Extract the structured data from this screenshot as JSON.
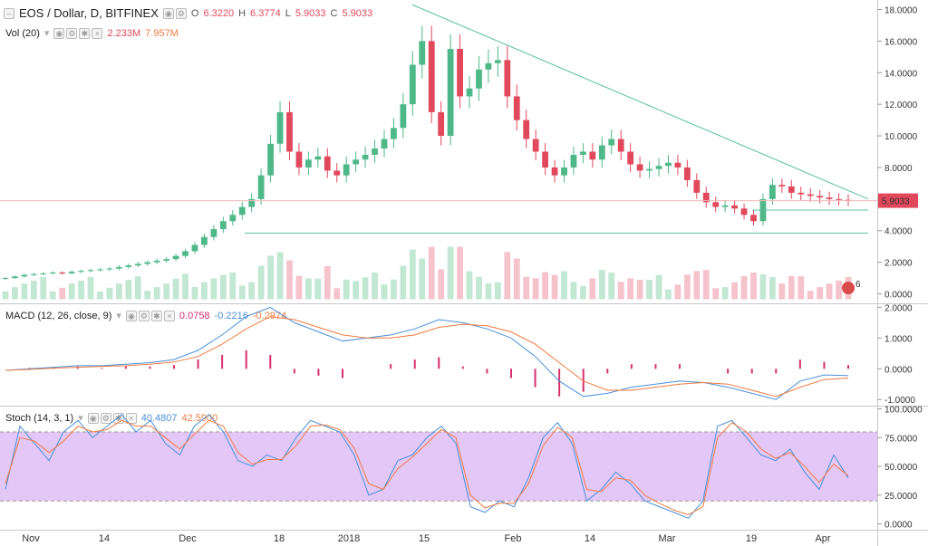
{
  "header": {
    "symbol": "EOS / Dollar, D, BITFINEX",
    "o_label": "O",
    "o_value": "6.3220",
    "h_label": "H",
    "h_value": "6.3774",
    "l_label": "L",
    "l_value": "5.9033",
    "c_label": "C",
    "c_value": "5.9033"
  },
  "volume": {
    "label": "Vol (20)",
    "value": "2.233M",
    "ma_value": "7.957M"
  },
  "macd": {
    "label": "MACD (12, 26, close, 9)",
    "hist": "0.0758",
    "macd": "-0.2216",
    "signal": "-0.2974"
  },
  "stoch": {
    "label": "Stoch (14, 3, 1)",
    "k": "40.4807",
    "d": "42.5900"
  },
  "price_badge": "5.9033",
  "event_badge": "6",
  "colors": {
    "up": "#4fb888",
    "down": "#e2485c",
    "trend": "#5bbfa3",
    "macd_line": "#4a90d9",
    "signal_line": "#f07b3f",
    "stoch_band": "#e3c8f7"
  },
  "chart_data": [
    {
      "type": "candlestick",
      "title": "EOS / Dollar, D, BITFINEX",
      "x_ticks": [
        "Nov",
        "14",
        "Dec",
        "18",
        "2018",
        "15",
        "Feb",
        "14",
        "Mar",
        "19",
        "Apr"
      ],
      "y_ticks": [
        "0.0000",
        "2.0000",
        "4.0000",
        "6.0000",
        "8.0000",
        "10.0000",
        "12.0000",
        "14.0000",
        "16.0000",
        "18.0000"
      ],
      "ylim": [
        -0.6,
        18.6
      ],
      "series": [
        {
          "name": "close",
          "values": [
            1.0,
            1.1,
            1.2,
            1.25,
            1.3,
            1.35,
            1.3,
            1.4,
            1.45,
            1.5,
            1.55,
            1.6,
            1.7,
            1.8,
            1.9,
            2.0,
            2.1,
            2.2,
            2.4,
            2.7,
            3.1,
            3.6,
            4.1,
            4.6,
            5.0,
            5.5,
            6.0,
            7.5,
            9.5,
            11.5,
            9.0,
            8.0,
            8.5,
            8.7,
            7.8,
            7.5,
            8.2,
            8.5,
            8.8,
            9.2,
            9.8,
            10.5,
            12.0,
            14.5,
            16.0,
            11.5,
            10.0,
            15.5,
            12.5,
            13.0,
            14.2,
            14.6,
            14.8,
            12.5,
            11.0,
            9.8,
            9.0,
            8.0,
            7.5,
            8.0,
            8.8,
            9.0,
            8.5,
            9.4,
            9.8,
            9.0,
            8.2,
            7.8,
            7.9,
            8.1,
            8.3,
            8.0,
            7.2,
            6.4,
            5.8,
            5.5,
            5.6,
            5.4,
            5.0,
            4.6,
            6.0,
            6.9,
            6.8,
            6.4,
            6.3,
            6.2,
            6.1,
            6.0,
            5.95,
            5.9
          ],
          "note": "approximate daily closes read from chart"
        },
        {
          "name": "trendline",
          "values": [
            18.3,
            6.0
          ]
        },
        {
          "name": "support",
          "values": [
            3.85
          ]
        },
        {
          "name": "support_2",
          "values": [
            5.3
          ]
        }
      ]
    },
    {
      "type": "bar",
      "title": "Vol (20)",
      "y_ticks": [],
      "series": [
        {
          "name": "volume",
          "values": [
            2.233
          ]
        }
      ]
    },
    {
      "type": "line",
      "title": "MACD (12, 26, close, 9)",
      "y_ticks": [
        "-1.0000",
        "0.0000",
        "1.0000",
        "2.0000"
      ],
      "ylim": [
        -1.2,
        2.1
      ],
      "series": [
        {
          "name": "MACD",
          "values": [
            -0.05,
            0.0,
            0.05,
            0.1,
            0.1,
            0.15,
            0.2,
            0.3,
            0.6,
            1.1,
            1.7,
            2.0,
            1.5,
            1.2,
            0.9,
            1.0,
            1.1,
            1.3,
            1.6,
            1.5,
            1.3,
            1.0,
            0.4,
            -0.4,
            -0.9,
            -0.8,
            -0.6,
            -0.5,
            -0.4,
            -0.45,
            -0.6,
            -0.8,
            -1.0,
            -0.4,
            -0.2,
            -0.22
          ]
        },
        {
          "name": "Signal",
          "values": [
            -0.05,
            -0.02,
            0.02,
            0.05,
            0.08,
            0.1,
            0.15,
            0.22,
            0.4,
            0.8,
            1.3,
            1.7,
            1.6,
            1.35,
            1.1,
            1.0,
            1.0,
            1.1,
            1.35,
            1.45,
            1.4,
            1.2,
            0.8,
            0.2,
            -0.4,
            -0.7,
            -0.7,
            -0.6,
            -0.5,
            -0.45,
            -0.5,
            -0.7,
            -0.9,
            -0.6,
            -0.35,
            -0.3
          ]
        }
      ]
    },
    {
      "type": "line",
      "title": "Stoch (14, 3, 1)",
      "y_ticks": [
        "0.0000",
        "25.0000",
        "50.0000",
        "75.0000",
        "100.0000"
      ],
      "ylim": [
        -5,
        102
      ],
      "band": [
        20,
        80
      ],
      "series": [
        {
          "name": "%K",
          "values": [
            30,
            85,
            70,
            55,
            80,
            90,
            75,
            85,
            95,
            80,
            90,
            70,
            60,
            85,
            95,
            80,
            55,
            50,
            60,
            55,
            75,
            90,
            85,
            80,
            60,
            25,
            30,
            55,
            60,
            75,
            85,
            70,
            15,
            10,
            20,
            15,
            40,
            75,
            88,
            70,
            20,
            30,
            45,
            35,
            20,
            15,
            10,
            5,
            20,
            85,
            90,
            75,
            60,
            55,
            65,
            45,
            30,
            60,
            40
          ]
        },
        {
          "name": "%D",
          "values": [
            35,
            75,
            72,
            62,
            72,
            85,
            80,
            82,
            90,
            85,
            85,
            75,
            65,
            78,
            90,
            85,
            62,
            52,
            56,
            56,
            68,
            85,
            86,
            82,
            66,
            35,
            30,
            48,
            58,
            70,
            82,
            75,
            25,
            14,
            18,
            18,
            35,
            68,
            84,
            75,
            30,
            28,
            40,
            38,
            25,
            18,
            12,
            8,
            15,
            75,
            88,
            80,
            65,
            57,
            62,
            50,
            36,
            52,
            42
          ]
        }
      ]
    }
  ]
}
